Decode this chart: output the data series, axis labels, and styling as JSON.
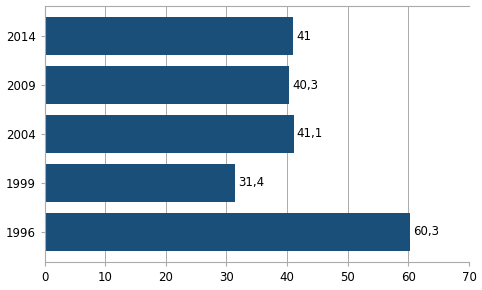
{
  "years": [
    "1996",
    "1999",
    "2004",
    "2009",
    "2014"
  ],
  "values": [
    60.3,
    31.4,
    41.1,
    40.3,
    41.0
  ],
  "labels": [
    "60,3",
    "31,4",
    "41,1",
    "40,3",
    "41"
  ],
  "bar_color": "#1a4f7a",
  "xlim": [
    0,
    70
  ],
  "xticks": [
    0,
    10,
    20,
    30,
    40,
    50,
    60,
    70
  ],
  "background_color": "#ffffff",
  "grid_color": "#aaaaaa",
  "spine_color": "#aaaaaa",
  "label_fontsize": 8.5,
  "tick_fontsize": 8.5,
  "bar_height": 0.78
}
